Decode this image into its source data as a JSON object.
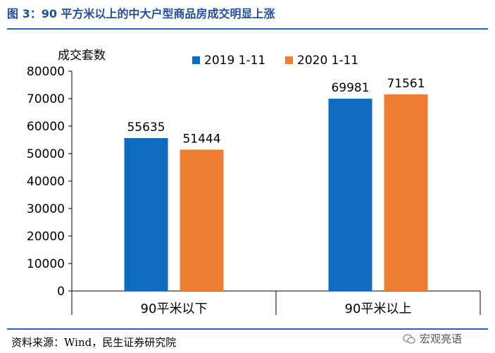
{
  "figure": {
    "title": "图 3：90 平方米以上的中大户型商品房成交明显上涨",
    "source": "资料来源：Wind，民生证券研究院",
    "watermark": "宏观亮语"
  },
  "colors": {
    "series_2019": "#0e6bbf",
    "series_2020": "#ed7d31",
    "rule": "#2e62b4",
    "title": "#1f4e9a"
  },
  "chart_data": {
    "type": "bar",
    "ylabel": "成交套数",
    "xlabel": "",
    "ylim": [
      0,
      80000
    ],
    "yticks": [
      0,
      10000,
      20000,
      30000,
      40000,
      50000,
      60000,
      70000,
      80000
    ],
    "categories": [
      "90平米以下",
      "90平米以上"
    ],
    "series": [
      {
        "name": "2019 1-11",
        "values": [
          55635,
          69981
        ]
      },
      {
        "name": "2020 1-11",
        "values": [
          51444,
          71561
        ]
      }
    ],
    "legend": "top",
    "grid": false
  }
}
